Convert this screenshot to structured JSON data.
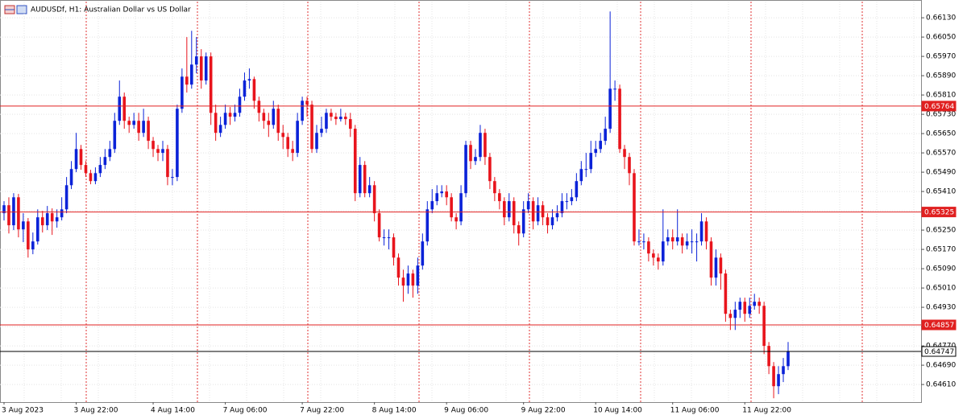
{
  "chart_data": {
    "type": "candlestick",
    "title": "AUDUSDf, H1:  Australian Dollar vs US Dollar",
    "bull_color": "#0a22d8",
    "bear_color": "#e8141c",
    "ylim": [
      0.64537,
      0.66197
    ],
    "yticks": [
      {
        "value": 0.6613,
        "label": "0.66130"
      },
      {
        "value": 0.6605,
        "label": "0.66050"
      },
      {
        "value": 0.6597,
        "label": "0.65970"
      },
      {
        "value": 0.6589,
        "label": "0.65890"
      },
      {
        "value": 0.6581,
        "label": "0.65810"
      },
      {
        "value": 0.6573,
        "label": "0.65730"
      },
      {
        "value": 0.6565,
        "label": "0.65650"
      },
      {
        "value": 0.6557,
        "label": "0.65570"
      },
      {
        "value": 0.6549,
        "label": "0.65490"
      },
      {
        "value": 0.6541,
        "label": "0.65410"
      },
      {
        "value": 0.6533,
        "label": "0.65330"
      },
      {
        "value": 0.6525,
        "label": "0.65250"
      },
      {
        "value": 0.6517,
        "label": "0.65170"
      },
      {
        "value": 0.6509,
        "label": "0.65090"
      },
      {
        "value": 0.6501,
        "label": "0.65010"
      },
      {
        "value": 0.6493,
        "label": "0.64930"
      },
      {
        "value": 0.6485,
        "label": "0.64850"
      },
      {
        "value": 0.6477,
        "label": "0.64770"
      },
      {
        "value": 0.6469,
        "label": "0.64690"
      },
      {
        "value": 0.6461,
        "label": "0.64610"
      }
    ],
    "grid": true,
    "levels": [
      {
        "value": 0.65764,
        "color": "#e02020"
      },
      {
        "value": 0.65325,
        "color": "#e02020"
      },
      {
        "value": 0.64857,
        "color": "#e02020"
      },
      {
        "value": 0.64747,
        "color": "#000000"
      }
    ],
    "categories": [
      "3 Aug 2023",
      null,
      null,
      null,
      null,
      null,
      null,
      null,
      null,
      null,
      null,
      null,
      null,
      null,
      null,
      "3 Aug 22:00",
      null,
      null,
      null,
      null,
      null,
      null,
      null,
      null,
      null,
      null,
      null,
      null,
      null,
      null,
      null,
      "4 Aug 14:00",
      null,
      null,
      null,
      null,
      null,
      null,
      null,
      null,
      null,
      null,
      null,
      null,
      null,
      null,
      "7 Aug 06:00",
      null,
      null,
      null,
      null,
      null,
      null,
      null,
      null,
      null,
      null,
      null,
      null,
      null,
      null,
      null,
      "7 Aug 22:00",
      null,
      null,
      null,
      null,
      null,
      null,
      null,
      null,
      null,
      null,
      null,
      null,
      null,
      null,
      "8 Aug 14:00",
      null,
      null,
      null,
      null,
      null,
      null,
      null,
      null,
      null,
      null,
      null,
      null,
      null,
      null,
      "9 Aug 06:00",
      null,
      null,
      null,
      null,
      null,
      null,
      null,
      null,
      null,
      null,
      null,
      null,
      null,
      null,
      null,
      "9 Aug 22:00",
      null,
      null,
      null,
      null,
      null,
      null,
      null,
      null,
      null,
      null,
      null,
      null,
      null,
      null,
      "10 Aug 14:00",
      null,
      null,
      null,
      null,
      null,
      null,
      null,
      null,
      null,
      null,
      null,
      null,
      null,
      null,
      null,
      "11 Aug 06:00",
      null,
      null,
      null,
      null,
      null,
      null,
      null,
      null,
      null,
      null,
      null,
      null,
      null,
      null,
      "11 Aug 22:00",
      null,
      null,
      null,
      null,
      null,
      null,
      null,
      null,
      null
    ],
    "open": [
      0.6532,
      0.65353,
      0.6527,
      0.65386,
      0.65253,
      0.65286,
      0.6517,
      0.65203,
      0.65303,
      0.6527,
      0.6532,
      0.65286,
      0.65303,
      0.65336,
      0.65436,
      0.65503,
      0.65586,
      0.6552,
      0.65486,
      0.65453,
      0.65486,
      0.6552,
      0.65553,
      0.65586,
      0.65703,
      0.65803,
      0.65703,
      0.65686,
      0.65703,
      0.65653,
      0.65703,
      0.6562,
      0.65586,
      0.6557,
      0.65586,
      0.6547,
      0.6547,
      0.65753,
      0.65886,
      0.65853,
      0.65936,
      0.6597,
      0.6587,
      0.6597,
      0.65736,
      0.65653,
      0.65686,
      0.65736,
      0.6572,
      0.65736,
      0.65803,
      0.6587,
      0.65876,
      0.65786,
      0.65736,
      0.65703,
      0.65686,
      0.65753,
      0.65653,
      0.65636,
      0.65586,
      0.6557,
      0.65703,
      0.65786,
      0.6577,
      0.65586,
      0.65653,
      0.6567,
      0.65736,
      0.6572,
      0.6571,
      0.6572,
      0.6571,
      0.6567,
      0.65403,
      0.6552,
      0.65403,
      0.65436,
      0.6532,
      0.6522,
      0.6522,
      0.6522,
      0.65136,
      0.65053,
      0.6502,
      0.6507,
      0.6502,
      0.65103,
      0.65203,
      0.65336,
      0.6537,
      0.65403,
      0.6541,
      0.65386,
      0.65303,
      0.65286,
      0.65403,
      0.65603,
      0.65536,
      0.65553,
      0.65653,
      0.65553,
      0.65453,
      0.65403,
      0.6537,
      0.65303,
      0.6537,
      0.6527,
      0.65236,
      0.65336,
      0.6537,
      0.65286,
      0.65353,
      0.65303,
      0.6527,
      0.65303,
      0.6532,
      0.6537,
      0.6537,
      0.65386,
      0.65453,
      0.65503,
      0.65503,
      0.6557,
      0.65586,
      0.6562,
      0.6567,
      0.65836,
      0.65836,
      0.65586,
      0.65553,
      0.65486,
      0.65203,
      0.65203,
      0.65203,
      0.65153,
      0.65136,
      0.6512,
      0.65203,
      0.6522,
      0.65203,
      0.6522,
      0.65186,
      0.65203,
      0.65203,
      0.65203,
      0.65286,
      0.65203,
      0.65053,
      0.65136,
      0.6507,
      0.64903,
      0.64886,
      0.6492,
      0.64953,
      0.64903,
      0.64936,
      0.64953,
      0.64936,
      0.6477,
      0.64686,
      0.64603,
      0.64653,
      0.64686
    ],
    "high": [
      0.6537,
      0.65386,
      0.65403,
      0.654,
      0.6532,
      0.653,
      0.6524,
      0.65336,
      0.6533,
      0.6535,
      0.6534,
      0.65336,
      0.65386,
      0.6547,
      0.65536,
      0.65653,
      0.65603,
      0.65536,
      0.655,
      0.6551,
      0.65553,
      0.65586,
      0.6562,
      0.65736,
      0.6587,
      0.6582,
      0.6572,
      0.65736,
      0.65736,
      0.65753,
      0.6572,
      0.65636,
      0.65603,
      0.6562,
      0.65603,
      0.65503,
      0.6577,
      0.6592,
      0.6605,
      0.66076,
      0.6605,
      0.66,
      0.65986,
      0.65986,
      0.6577,
      0.6572,
      0.6577,
      0.6576,
      0.6577,
      0.65836,
      0.65903,
      0.6592,
      0.65886,
      0.65803,
      0.65753,
      0.65736,
      0.65786,
      0.6577,
      0.65686,
      0.65653,
      0.6562,
      0.65736,
      0.65803,
      0.65803,
      0.65786,
      0.65686,
      0.6572,
      0.65753,
      0.65753,
      0.65736,
      0.65753,
      0.65736,
      0.65736,
      0.65686,
      0.65553,
      0.65536,
      0.6547,
      0.65453,
      0.65336,
      0.65253,
      0.65253,
      0.65236,
      0.65153,
      0.65086,
      0.65103,
      0.65086,
      0.65136,
      0.65236,
      0.6537,
      0.6542,
      0.65436,
      0.65436,
      0.65436,
      0.65403,
      0.6532,
      0.65436,
      0.6562,
      0.6562,
      0.65586,
      0.65686,
      0.6567,
      0.6557,
      0.6547,
      0.6542,
      0.65386,
      0.65403,
      0.65386,
      0.65286,
      0.6537,
      0.65403,
      0.65386,
      0.65386,
      0.6537,
      0.6532,
      0.65336,
      0.65353,
      0.65403,
      0.65403,
      0.6542,
      0.65486,
      0.65536,
      0.6557,
      0.6562,
      0.6562,
      0.65653,
      0.6572,
      0.66156,
      0.6587,
      0.65853,
      0.65603,
      0.6557,
      0.65503,
      0.65253,
      0.65236,
      0.6522,
      0.6517,
      0.65153,
      0.65336,
      0.65253,
      0.65253,
      0.65336,
      0.65236,
      0.65236,
      0.65253,
      0.65236,
      0.6532,
      0.65303,
      0.6522,
      0.6517,
      0.65153,
      0.65086,
      0.6492,
      0.64953,
      0.6497,
      0.6497,
      0.6497,
      0.64986,
      0.6497,
      0.64953,
      0.64786,
      0.64703,
      0.64686,
      0.6472,
      0.64786
    ],
    "low": [
      0.6529,
      0.65236,
      0.6525,
      0.6522,
      0.652,
      0.65136,
      0.6515,
      0.6519,
      0.6524,
      0.6525,
      0.6523,
      0.6526,
      0.6529,
      0.6532,
      0.6542,
      0.6549,
      0.655,
      0.6547,
      0.6544,
      0.6544,
      0.6547,
      0.65503,
      0.65536,
      0.6557,
      0.65686,
      0.6567,
      0.65653,
      0.6567,
      0.6562,
      0.65636,
      0.65586,
      0.65553,
      0.65536,
      0.65536,
      0.65436,
      0.65436,
      0.65453,
      0.65736,
      0.6582,
      0.65836,
      0.659,
      0.65836,
      0.65853,
      0.65686,
      0.6562,
      0.65636,
      0.6567,
      0.65686,
      0.657,
      0.6572,
      0.65786,
      0.65836,
      0.65753,
      0.657,
      0.6567,
      0.65636,
      0.6567,
      0.6562,
      0.65586,
      0.65553,
      0.65536,
      0.65553,
      0.65686,
      0.6572,
      0.6557,
      0.6557,
      0.65636,
      0.65653,
      0.65703,
      0.65686,
      0.657,
      0.65686,
      0.65636,
      0.6537,
      0.65386,
      0.65386,
      0.65386,
      0.65286,
      0.65203,
      0.65186,
      0.6517,
      0.65103,
      0.6502,
      0.64953,
      0.64986,
      0.6497,
      0.64986,
      0.65086,
      0.65186,
      0.6532,
      0.65353,
      0.65386,
      0.65353,
      0.65286,
      0.65253,
      0.6527,
      0.65386,
      0.65503,
      0.6552,
      0.65536,
      0.6552,
      0.6542,
      0.6537,
      0.65336,
      0.6527,
      0.65286,
      0.65236,
      0.65186,
      0.6522,
      0.6532,
      0.65253,
      0.6527,
      0.6527,
      0.65236,
      0.65253,
      0.65286,
      0.65303,
      0.65336,
      0.65353,
      0.6537,
      0.65436,
      0.6547,
      0.65486,
      0.65553,
      0.6557,
      0.65603,
      0.65653,
      0.65786,
      0.6557,
      0.65503,
      0.65436,
      0.65186,
      0.65186,
      0.6517,
      0.6512,
      0.65103,
      0.65086,
      0.65103,
      0.65186,
      0.6517,
      0.65186,
      0.65153,
      0.6517,
      0.65153,
      0.6512,
      0.65186,
      0.6517,
      0.6502,
      0.6502,
      0.65003,
      0.6487,
      0.64836,
      0.64836,
      0.64886,
      0.6487,
      0.64886,
      0.6492,
      0.64903,
      0.64736,
      0.64653,
      0.64553,
      0.6457,
      0.6462,
      0.6467
    ],
    "close": [
      0.65353,
      0.6527,
      0.65386,
      0.65253,
      0.65286,
      0.6517,
      0.65203,
      0.65303,
      0.6527,
      0.6532,
      0.65286,
      0.65303,
      0.65336,
      0.65436,
      0.65503,
      0.65586,
      0.6552,
      0.65486,
      0.65453,
      0.65486,
      0.6552,
      0.65553,
      0.65586,
      0.65703,
      0.65803,
      0.65703,
      0.65686,
      0.65703,
      0.65653,
      0.65703,
      0.6562,
      0.65586,
      0.6557,
      0.65586,
      0.6547,
      0.6547,
      0.65753,
      0.65886,
      0.65853,
      0.65936,
      0.6597,
      0.6587,
      0.6597,
      0.65736,
      0.65653,
      0.65686,
      0.65736,
      0.6572,
      0.65736,
      0.65803,
      0.6587,
      0.65876,
      0.65786,
      0.65736,
      0.65703,
      0.65686,
      0.65753,
      0.65653,
      0.65636,
      0.65586,
      0.6557,
      0.65703,
      0.65786,
      0.6577,
      0.65586,
      0.65653,
      0.6567,
      0.65736,
      0.6572,
      0.6571,
      0.6572,
      0.6571,
      0.6567,
      0.65403,
      0.6552,
      0.65403,
      0.65436,
      0.6532,
      0.6522,
      0.6522,
      0.6522,
      0.65136,
      0.65053,
      0.6502,
      0.6507,
      0.6502,
      0.65103,
      0.65203,
      0.65336,
      0.6537,
      0.65403,
      0.6541,
      0.65386,
      0.65303,
      0.65286,
      0.65403,
      0.65603,
      0.65536,
      0.65553,
      0.65653,
      0.65553,
      0.65453,
      0.65403,
      0.6537,
      0.65303,
      0.6537,
      0.6527,
      0.65236,
      0.65336,
      0.6537,
      0.65286,
      0.65353,
      0.65303,
      0.6527,
      0.65303,
      0.6532,
      0.6537,
      0.6537,
      0.65386,
      0.65453,
      0.65503,
      0.65503,
      0.6557,
      0.65586,
      0.6562,
      0.6567,
      0.65836,
      0.65836,
      0.65586,
      0.65553,
      0.65486,
      0.65203,
      0.65203,
      0.65203,
      0.65153,
      0.65136,
      0.6512,
      0.65203,
      0.6522,
      0.65203,
      0.6522,
      0.65186,
      0.65203,
      0.65203,
      0.65203,
      0.65286,
      0.65203,
      0.65053,
      0.65136,
      0.6507,
      0.64903,
      0.64886,
      0.6492,
      0.64953,
      0.64903,
      0.64936,
      0.64953,
      0.64936,
      0.6477,
      0.64686,
      0.64603,
      0.64653,
      0.64686,
      0.64747
    ]
  }
}
